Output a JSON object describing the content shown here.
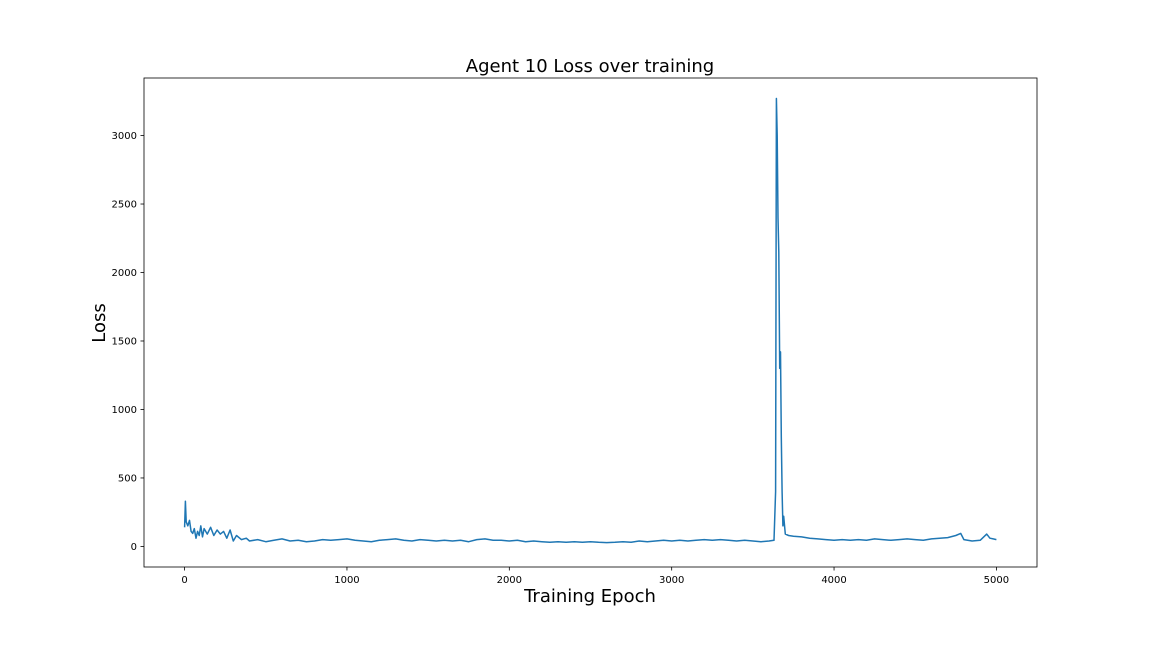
{
  "chart_data": {
    "type": "line",
    "title": "Agent 10 Loss over training",
    "xlabel": "Training Epoch",
    "ylabel": "Loss",
    "xlim": [
      -250,
      5250
    ],
    "ylim": [
      -150,
      3420
    ],
    "xticks": [
      0,
      1000,
      2000,
      3000,
      4000,
      5000
    ],
    "yticks": [
      0,
      500,
      1000,
      1500,
      2000,
      2500,
      3000
    ],
    "grid": false,
    "legend": "none",
    "colors": {
      "line": "#1f77b4",
      "axes": "#000000",
      "background": "#ffffff"
    },
    "series": [
      {
        "points": [
          [
            0,
            140
          ],
          [
            5,
            330
          ],
          [
            10,
            180
          ],
          [
            20,
            150
          ],
          [
            30,
            190
          ],
          [
            40,
            110
          ],
          [
            50,
            95
          ],
          [
            60,
            130
          ],
          [
            70,
            60
          ],
          [
            80,
            110
          ],
          [
            90,
            80
          ],
          [
            100,
            150
          ],
          [
            110,
            70
          ],
          [
            120,
            130
          ],
          [
            140,
            90
          ],
          [
            160,
            140
          ],
          [
            180,
            80
          ],
          [
            200,
            120
          ],
          [
            220,
            90
          ],
          [
            240,
            110
          ],
          [
            260,
            60
          ],
          [
            280,
            120
          ],
          [
            300,
            40
          ],
          [
            320,
            80
          ],
          [
            350,
            50
          ],
          [
            380,
            60
          ],
          [
            400,
            40
          ],
          [
            450,
            50
          ],
          [
            500,
            35
          ],
          [
            550,
            45
          ],
          [
            600,
            55
          ],
          [
            650,
            40
          ],
          [
            700,
            45
          ],
          [
            750,
            35
          ],
          [
            800,
            40
          ],
          [
            850,
            50
          ],
          [
            900,
            45
          ],
          [
            950,
            50
          ],
          [
            1000,
            55
          ],
          [
            1050,
            45
          ],
          [
            1100,
            40
          ],
          [
            1150,
            35
          ],
          [
            1200,
            45
          ],
          [
            1250,
            50
          ],
          [
            1300,
            55
          ],
          [
            1350,
            45
          ],
          [
            1400,
            40
          ],
          [
            1450,
            50
          ],
          [
            1500,
            45
          ],
          [
            1550,
            40
          ],
          [
            1600,
            45
          ],
          [
            1650,
            40
          ],
          [
            1700,
            45
          ],
          [
            1750,
            35
          ],
          [
            1800,
            50
          ],
          [
            1850,
            55
          ],
          [
            1900,
            45
          ],
          [
            1950,
            45
          ],
          [
            2000,
            40
          ],
          [
            2050,
            45
          ],
          [
            2100,
            35
          ],
          [
            2150,
            40
          ],
          [
            2200,
            35
          ],
          [
            2250,
            30
          ],
          [
            2300,
            35
          ],
          [
            2350,
            30
          ],
          [
            2400,
            35
          ],
          [
            2450,
            30
          ],
          [
            2500,
            35
          ],
          [
            2550,
            30
          ],
          [
            2600,
            28
          ],
          [
            2650,
            30
          ],
          [
            2700,
            35
          ],
          [
            2750,
            30
          ],
          [
            2800,
            40
          ],
          [
            2850,
            35
          ],
          [
            2900,
            40
          ],
          [
            2950,
            45
          ],
          [
            3000,
            40
          ],
          [
            3050,
            45
          ],
          [
            3100,
            40
          ],
          [
            3150,
            45
          ],
          [
            3200,
            50
          ],
          [
            3250,
            45
          ],
          [
            3300,
            50
          ],
          [
            3350,
            45
          ],
          [
            3400,
            40
          ],
          [
            3450,
            45
          ],
          [
            3500,
            40
          ],
          [
            3550,
            35
          ],
          [
            3600,
            40
          ],
          [
            3630,
            45
          ],
          [
            3640,
            400
          ],
          [
            3645,
            3270
          ],
          [
            3650,
            3000
          ],
          [
            3655,
            2400
          ],
          [
            3660,
            2150
          ],
          [
            3665,
            1300
          ],
          [
            3670,
            1420
          ],
          [
            3675,
            800
          ],
          [
            3680,
            400
          ],
          [
            3685,
            150
          ],
          [
            3690,
            220
          ],
          [
            3700,
            90
          ],
          [
            3720,
            80
          ],
          [
            3750,
            75
          ],
          [
            3800,
            70
          ],
          [
            3850,
            60
          ],
          [
            3900,
            55
          ],
          [
            3950,
            50
          ],
          [
            4000,
            45
          ],
          [
            4050,
            50
          ],
          [
            4100,
            45
          ],
          [
            4150,
            50
          ],
          [
            4200,
            45
          ],
          [
            4250,
            55
          ],
          [
            4300,
            50
          ],
          [
            4350,
            45
          ],
          [
            4400,
            50
          ],
          [
            4450,
            55
          ],
          [
            4500,
            50
          ],
          [
            4550,
            45
          ],
          [
            4600,
            55
          ],
          [
            4650,
            60
          ],
          [
            4700,
            65
          ],
          [
            4750,
            80
          ],
          [
            4780,
            95
          ],
          [
            4800,
            50
          ],
          [
            4850,
            40
          ],
          [
            4900,
            45
          ],
          [
            4940,
            90
          ],
          [
            4960,
            60
          ],
          [
            4980,
            55
          ],
          [
            5000,
            50
          ]
        ]
      }
    ]
  }
}
